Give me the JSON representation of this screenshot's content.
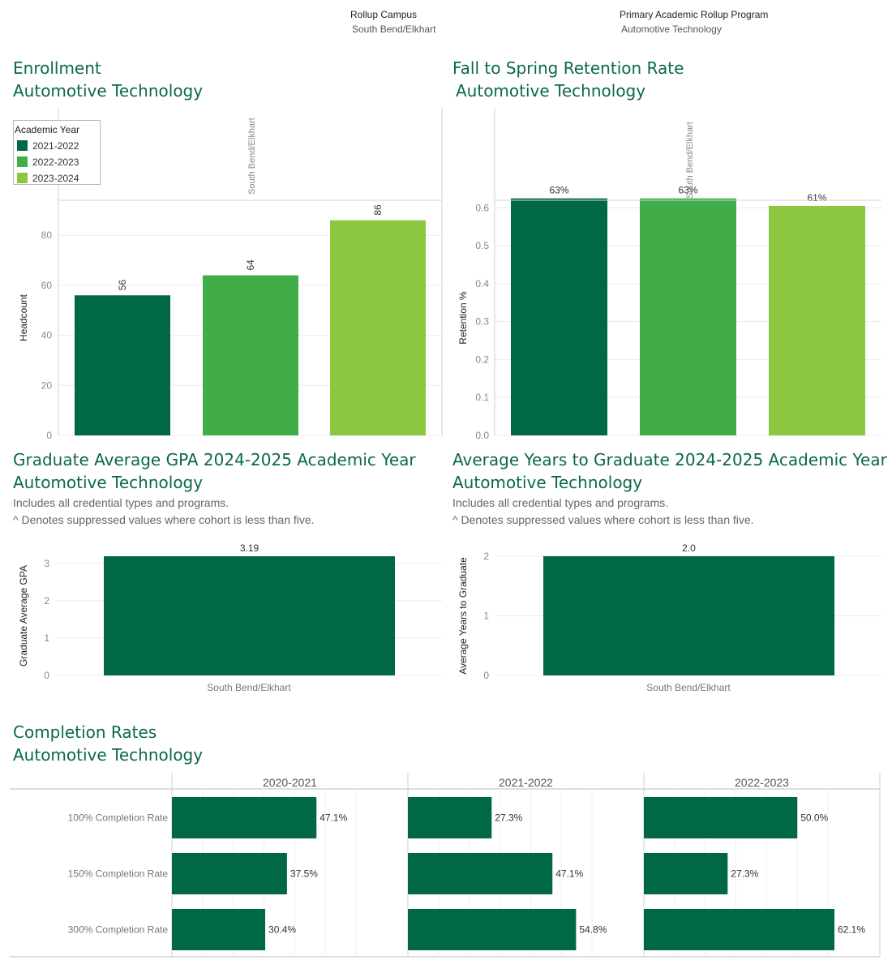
{
  "filters": {
    "campus": {
      "label": "Rollup Campus",
      "value": "South Bend/Elkhart"
    },
    "program": {
      "label": "Primary Academic Rollup Program",
      "value": "Automotive Technology"
    }
  },
  "colors": {
    "dark_green": "#006747",
    "mid_green": "#41ad49",
    "light_green": "#8dc63f",
    "title_green": "#0a6a43"
  },
  "enrollment": {
    "title": "Enrollment",
    "subtitle": "Automotive Technology",
    "legend_title": "Academic Year"
  },
  "retention": {
    "title": "Fall to Spring Retention Rate",
    "subtitle": "Automotive Technology"
  },
  "gpa": {
    "title": "Graduate Average GPA 2024-2025 Academic Year",
    "subtitle": "Automotive Technology",
    "note1": "Includes all credential types and programs.",
    "note2": "^ Denotes suppressed values where cohort is less than five."
  },
  "years": {
    "title": "Average Years to Graduate 2024-2025 Academic Year",
    "subtitle": "Automotive Technology",
    "note1": "Includes all credential types and programs.",
    "note2": "^ Denotes suppressed values where cohort is less than five."
  },
  "completion": {
    "title": "Completion Rates",
    "subtitle": "Automotive Technology"
  },
  "chart_data": [
    {
      "id": "enrollment",
      "type": "bar",
      "panel_header": "South Bend/Elkhart",
      "categories": [
        "2021-2022",
        "2022-2023",
        "2023-2024"
      ],
      "values": [
        56,
        64,
        86
      ],
      "data_labels": [
        "56",
        "64",
        "86"
      ],
      "colors": [
        "#006747",
        "#41ad49",
        "#8dc63f"
      ],
      "ylabel": "Headcount",
      "ylim": [
        0,
        94
      ],
      "yticks": [
        0,
        20,
        40,
        60,
        80
      ],
      "ytick_labels": [
        "0",
        "20",
        "40",
        "60",
        "80"
      ],
      "grid": true,
      "legend": "top-left"
    },
    {
      "id": "retention",
      "type": "bar",
      "panel_header": "South Bend/Elkhart",
      "categories": [
        "2021-2022",
        "2022-2023",
        "2023-2024"
      ],
      "values": [
        0.625,
        0.625,
        0.605
      ],
      "data_labels": [
        "63%",
        "63%",
        "61%"
      ],
      "colors": [
        "#006747",
        "#41ad49",
        "#8dc63f"
      ],
      "ylabel": "Retention %",
      "ylim": [
        0,
        0.62
      ],
      "yticks": [
        0,
        0.1,
        0.2,
        0.3,
        0.4,
        0.5,
        0.6
      ],
      "ytick_labels": [
        "0.0",
        "0.1",
        "0.2",
        "0.3",
        "0.4",
        "0.5",
        "0.6"
      ],
      "grid": true
    },
    {
      "id": "gpa",
      "type": "bar",
      "categories": [
        "South Bend/Elkhart"
      ],
      "values": [
        3.19
      ],
      "data_labels": [
        "3.19"
      ],
      "colors": [
        "#006747"
      ],
      "ylabel": "Graduate Average GPA",
      "ylim": [
        0,
        3.19
      ],
      "yticks": [
        0,
        1,
        2,
        3
      ],
      "ytick_labels": [
        "0",
        "1",
        "2",
        "3"
      ],
      "grid": true
    },
    {
      "id": "years",
      "type": "bar",
      "categories": [
        "South Bend/Elkhart"
      ],
      "values": [
        2.0
      ],
      "data_labels": [
        "2.0"
      ],
      "colors": [
        "#006747"
      ],
      "ylabel": "Average Years to Graduate",
      "ylim": [
        0,
        2.0
      ],
      "yticks": [
        0,
        1,
        2
      ],
      "ytick_labels": [
        "0",
        "1",
        "2"
      ],
      "grid": true
    },
    {
      "id": "completion",
      "type": "bar",
      "orientation": "horizontal",
      "row_labels": [
        "100% Completion Rate",
        "150% Completion Rate",
        "300% Completion Rate"
      ],
      "panels": [
        {
          "header": "2020-2021",
          "values": [
            47.1,
            37.5,
            30.4
          ],
          "data_labels": [
            "47.1%",
            "37.5%",
            "30.4%"
          ]
        },
        {
          "header": "2021-2022",
          "values": [
            27.3,
            47.1,
            54.8
          ],
          "data_labels": [
            "27.3%",
            "47.1%",
            "54.8%"
          ]
        },
        {
          "header": "2022-2023",
          "values": [
            50.0,
            27.3,
            62.1
          ],
          "data_labels": [
            "50.0%",
            "27.3%",
            "62.1%"
          ]
        }
      ],
      "xlim": [
        0,
        62.1
      ],
      "colors": [
        "#006747"
      ],
      "grid": true
    }
  ]
}
